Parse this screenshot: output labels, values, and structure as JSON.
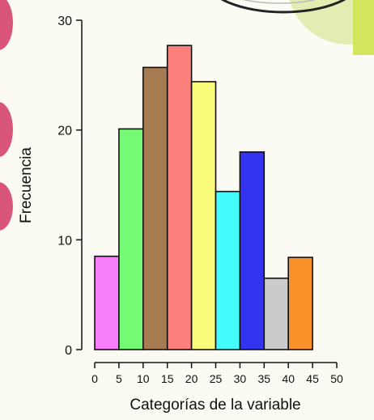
{
  "chart_data": {
    "type": "bar",
    "title": "",
    "xlabel": "Categorías de la variable",
    "ylabel": "Frecuencia",
    "bins": [
      [
        0,
        5
      ],
      [
        5,
        10
      ],
      [
        10,
        15
      ],
      [
        15,
        20
      ],
      [
        20,
        25
      ],
      [
        25,
        30
      ],
      [
        30,
        35
      ],
      [
        35,
        40
      ],
      [
        40,
        45
      ]
    ],
    "values": [
      8.5,
      20.1,
      25.7,
      27.7,
      24.4,
      14.4,
      18.0,
      6.5,
      8.4
    ],
    "colors": [
      "#f77ef9",
      "#74fa74",
      "#a87c52",
      "#fb807c",
      "#fcfc7c",
      "#44fcfc",
      "#3434f0",
      "#cbcbcb",
      "#f9922a"
    ],
    "xlim": [
      0,
      50
    ],
    "ylim": [
      0,
      30
    ],
    "xticks": [
      0,
      5,
      10,
      15,
      20,
      25,
      30,
      35,
      40,
      45,
      50
    ],
    "yticks": [
      0,
      10,
      20,
      30
    ],
    "grid": false
  },
  "background": {
    "page_color": "#fbfaf3",
    "left_bubble_color": "#d9557a",
    "top_right_circle_color": "#e2ecb3",
    "top_right_bar_color": "#d4e45c"
  }
}
